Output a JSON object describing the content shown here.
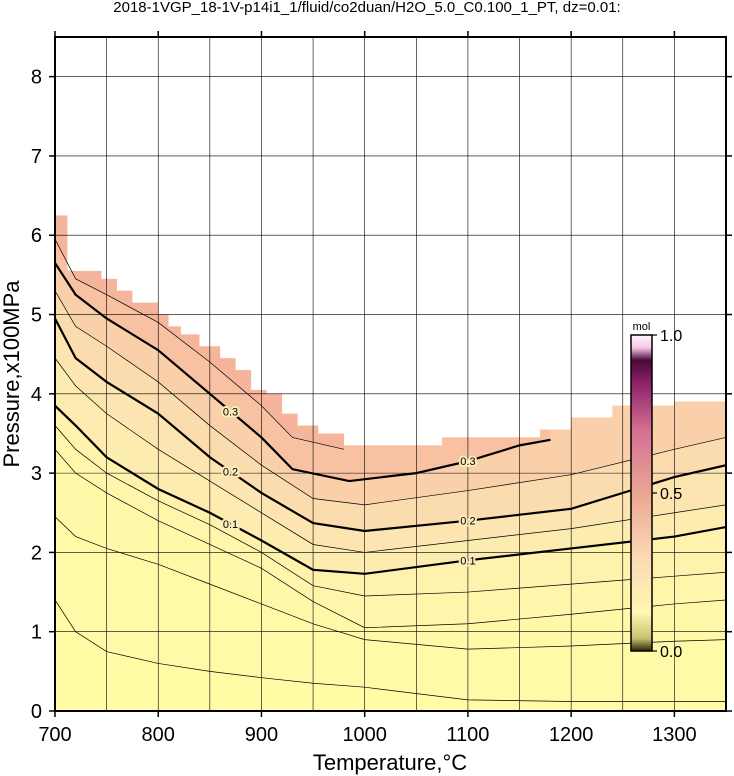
{
  "chart_data": {
    "type": "contour",
    "title": "2018-1VGP_18-1V-p14i1_1/fluid/co2duan/H2O_5.0_C0.100_1_PT, dz=0.01:",
    "x_label": "Temperature,°C",
    "y_label": "Pressure,x100MPa",
    "xlim": [
      700,
      1350
    ],
    "ylim": [
      0,
      8.5
    ],
    "xticks": [
      700,
      800,
      900,
      1000,
      1100,
      1200,
      1300
    ],
    "xgrid": [
      750,
      800,
      850,
      900,
      950,
      1000,
      1050,
      1100,
      1150,
      1200,
      1250,
      1300
    ],
    "yticks": [
      0,
      1,
      2,
      3,
      4,
      5,
      6,
      7,
      8
    ],
    "grid": true,
    "field": {
      "color": "#f5b59c",
      "x": [
        700,
        712,
        712,
        745,
        745,
        760,
        760,
        775,
        775,
        800,
        800,
        810,
        810,
        822,
        822,
        840,
        840,
        860,
        860,
        875,
        875,
        890,
        890,
        905,
        905,
        920,
        920,
        935,
        935,
        955,
        955,
        980,
        980,
        1075,
        1075,
        1170,
        1170,
        1200,
        1200,
        1240,
        1240,
        1300,
        1300,
        1350
      ],
      "y": [
        6.25,
        6.25,
        5.55,
        5.55,
        5.45,
        5.45,
        5.3,
        5.3,
        5.15,
        5.15,
        5.0,
        5.0,
        4.85,
        4.85,
        4.75,
        4.75,
        4.6,
        4.6,
        4.45,
        4.45,
        4.3,
        4.3,
        4.05,
        4.05,
        4.0,
        4.0,
        3.75,
        3.75,
        3.6,
        3.6,
        3.5,
        3.5,
        3.35,
        3.35,
        3.45,
        3.45,
        3.55,
        3.55,
        3.7,
        3.7,
        3.85,
        3.85,
        3.9,
        3.9
      ]
    },
    "contours": [
      {
        "level": 0.35,
        "major": false,
        "fill": "#f8c2a2",
        "x": [
          700,
          720,
          750,
          800,
          850,
          900,
          930,
          980
        ],
        "y": [
          5.95,
          5.45,
          5.25,
          4.9,
          4.4,
          3.85,
          3.45,
          3.3
        ]
      },
      {
        "level": 0.3,
        "major": true,
        "fill": "#fad0ab",
        "x": [
          700,
          720,
          750,
          800,
          850,
          900,
          930,
          985,
          1050,
          1100,
          1150,
          1180
        ],
        "y": [
          5.65,
          5.25,
          4.95,
          4.55,
          4.0,
          3.45,
          3.05,
          2.9,
          3.0,
          3.15,
          3.35,
          3.42
        ]
      },
      {
        "level": 0.25,
        "major": false,
        "fill": "#fbdcae",
        "x": [
          700,
          720,
          750,
          800,
          850,
          900,
          950,
          1000,
          1100,
          1200,
          1300,
          1350
        ],
        "y": [
          5.3,
          4.85,
          4.6,
          4.15,
          3.6,
          3.1,
          2.68,
          2.6,
          2.78,
          2.98,
          3.3,
          3.45
        ]
      },
      {
        "level": 0.2,
        "major": true,
        "fill": "#fce5b0",
        "x": [
          700,
          720,
          750,
          800,
          850,
          900,
          950,
          1000,
          1100,
          1200,
          1300,
          1350
        ],
        "y": [
          4.95,
          4.45,
          4.15,
          3.75,
          3.2,
          2.75,
          2.37,
          2.27,
          2.4,
          2.55,
          2.95,
          3.1
        ]
      },
      {
        "level": 0.15,
        "major": false,
        "fill": "#fdecaf",
        "x": [
          700,
          720,
          750,
          800,
          850,
          900,
          950,
          1000,
          1100,
          1200,
          1300,
          1350
        ],
        "y": [
          4.45,
          4.1,
          3.75,
          3.3,
          2.9,
          2.5,
          2.1,
          2.0,
          2.15,
          2.3,
          2.5,
          2.6
        ]
      },
      {
        "level": 0.1,
        "major": true,
        "fill": "#fef2ad",
        "x": [
          700,
          720,
          750,
          800,
          850,
          900,
          950,
          1000,
          1100,
          1200,
          1300,
          1350
        ],
        "y": [
          3.85,
          3.6,
          3.2,
          2.8,
          2.5,
          2.15,
          1.78,
          1.73,
          1.9,
          2.05,
          2.2,
          2.32
        ]
      },
      {
        "level": 0.07,
        "major": false,
        "fill": "#fff5ab",
        "x": [
          700,
          720,
          750,
          800,
          850,
          900,
          950,
          1000,
          1100,
          1200,
          1300,
          1350
        ],
        "y": [
          3.6,
          3.3,
          3.0,
          2.65,
          2.35,
          2.0,
          1.58,
          1.45,
          1.5,
          1.6,
          1.7,
          1.75
        ]
      },
      {
        "level": 0.05,
        "major": false,
        "fill": "#fff8a9",
        "x": [
          700,
          720,
          750,
          800,
          850,
          900,
          950,
          1000,
          1100,
          1200,
          1300,
          1350
        ],
        "y": [
          3.3,
          3.0,
          2.75,
          2.4,
          2.1,
          1.8,
          1.38,
          1.05,
          1.1,
          1.22,
          1.35,
          1.4
        ]
      },
      {
        "level": 0.02,
        "major": false,
        "fill": "#fffaa7",
        "x": [
          700,
          720,
          750,
          800,
          850,
          900,
          950,
          1000,
          1100,
          1200,
          1300,
          1350
        ],
        "y": [
          2.45,
          2.2,
          2.05,
          1.85,
          1.6,
          1.35,
          1.1,
          0.9,
          0.78,
          0.82,
          0.88,
          0.9
        ]
      },
      {
        "level": 0.01,
        "major": false,
        "fill": "#fffca5",
        "x": [
          700,
          720,
          750,
          800,
          850,
          900,
          950,
          1000,
          1100,
          1200,
          1300,
          1350
        ],
        "y": [
          1.4,
          1.0,
          0.75,
          0.6,
          0.5,
          0.42,
          0.35,
          0.3,
          0.14,
          0.12,
          0.12,
          0.12
        ]
      }
    ],
    "colorbar": {
      "title": "mol",
      "lim": [
        0,
        1
      ],
      "ticks": [
        {
          "value": 0,
          "label": "0.0"
        },
        {
          "value": 0.5,
          "label": "0.5"
        },
        {
          "value": 1,
          "label": "1.0"
        }
      ],
      "colormap": [
        {
          "value": 0,
          "color": "#2a2400"
        },
        {
          "value": 0.04,
          "color": "#c8c070"
        },
        {
          "value": 0.12,
          "color": "#fff7b0"
        },
        {
          "value": 0.3,
          "color": "#fbd9b5"
        },
        {
          "value": 0.5,
          "color": "#eba592"
        },
        {
          "value": 0.7,
          "color": "#d56f93"
        },
        {
          "value": 0.85,
          "color": "#8c2068"
        },
        {
          "value": 0.92,
          "color": "#4a0a38"
        },
        {
          "value": 0.96,
          "color": "#f8c8e6"
        },
        {
          "value": 1,
          "color": "#fff6fb"
        }
      ]
    }
  }
}
